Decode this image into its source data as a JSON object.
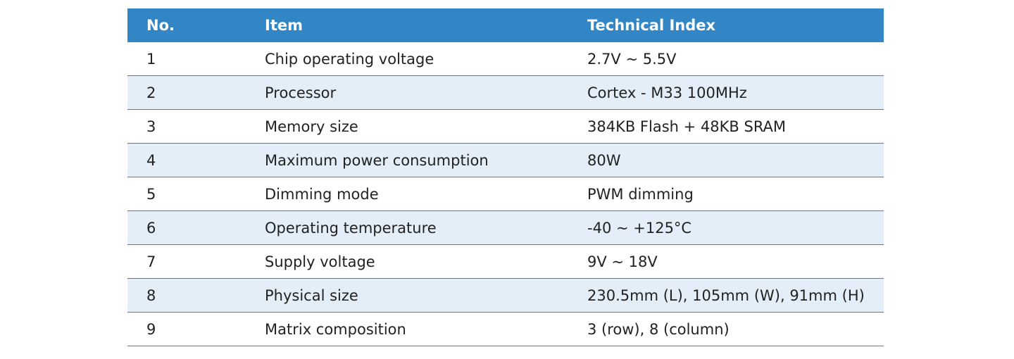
{
  "table": {
    "header": [
      "No.",
      "Item",
      "Technical Index"
    ],
    "rows": [
      [
        "1",
        "Chip operating voltage",
        "2.7V ~ 5.5V"
      ],
      [
        "2",
        "Processor",
        "Cortex - M33 100MHz"
      ],
      [
        "3",
        "Memory size",
        "384KB Flash + 48KB SRAM"
      ],
      [
        "4",
        "Maximum power consumption",
        "80W"
      ],
      [
        "5",
        "Dimming mode",
        "PWM dimming"
      ],
      [
        "6",
        "Operating temperature",
        "-40 ~ +125°C"
      ],
      [
        "7",
        "Supply voltage",
        "9V ~ 18V"
      ],
      [
        "8",
        "Physical size",
        "230.5mm (L), 105mm (W), 91mm (H)"
      ],
      [
        "9",
        "Matrix composition",
        "3 (row), 8 (column)"
      ]
    ]
  }
}
